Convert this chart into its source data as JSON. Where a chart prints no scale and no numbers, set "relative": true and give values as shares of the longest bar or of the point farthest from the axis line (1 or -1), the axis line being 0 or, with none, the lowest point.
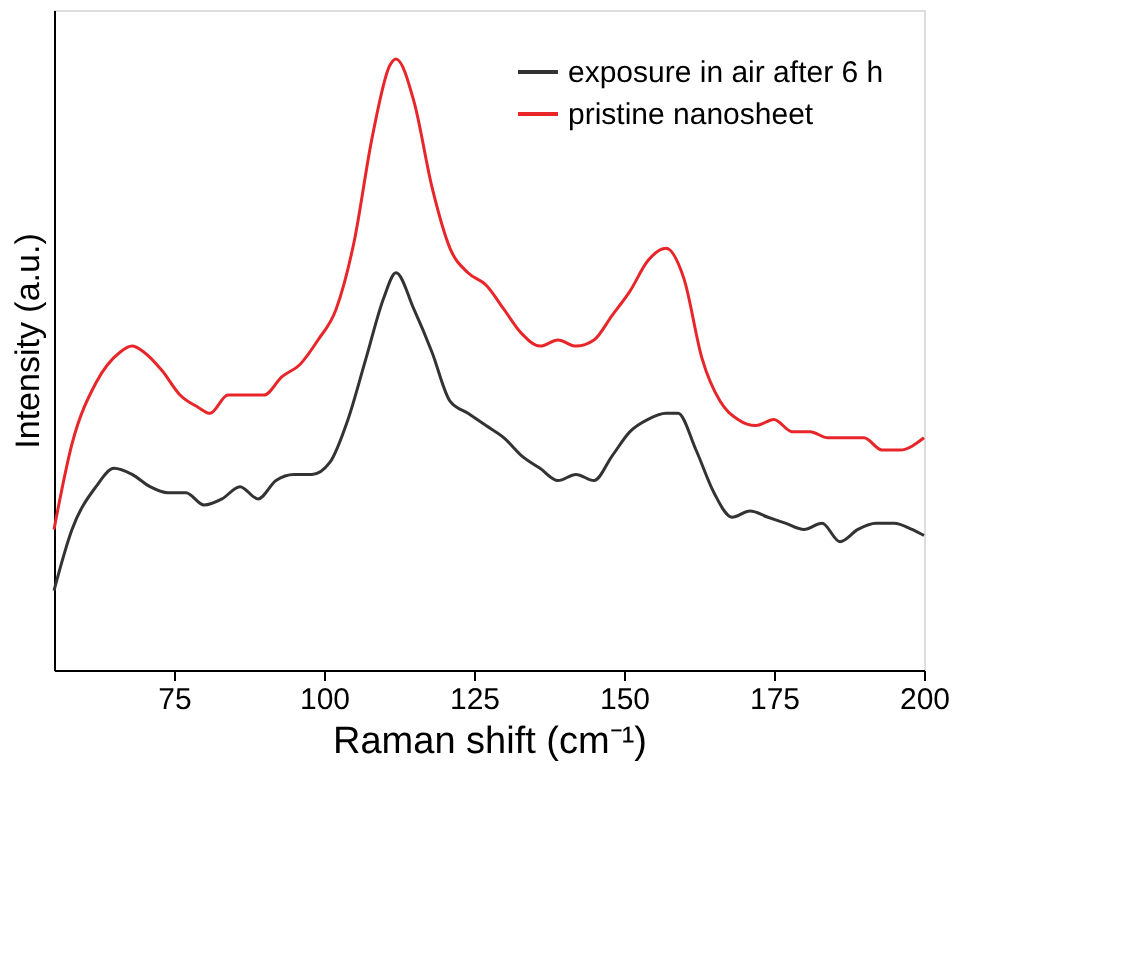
{
  "chart_data": {
    "type": "line",
    "relative": true,
    "xlabel": "Raman shift (cm⁻¹)",
    "ylabel": "Intensity (a.u.)",
    "xlim": [
      55,
      200
    ],
    "xticks": [
      75,
      100,
      125,
      150,
      175,
      200
    ],
    "grid": false,
    "legend": "top right",
    "marker": "none",
    "line_style": "solid",
    "series": [
      {
        "name": "exposure in air after 6 h",
        "color": "#333333",
        "x": [
          55,
          58,
          62,
          65,
          68,
          71,
          74,
          77,
          80,
          83,
          86,
          89,
          92,
          95,
          98,
          101,
          104,
          107,
          110,
          112,
          115,
          118,
          121,
          124,
          127,
          130,
          133,
          136,
          139,
          142,
          145,
          148,
          151,
          154,
          157,
          159,
          162,
          165,
          168,
          171,
          174,
          177,
          180,
          183,
          186,
          189,
          192,
          195,
          198,
          200
        ],
        "values": [
          0.13,
          0.23,
          0.3,
          0.33,
          0.32,
          0.3,
          0.29,
          0.29,
          0.27,
          0.28,
          0.3,
          0.28,
          0.31,
          0.32,
          0.32,
          0.34,
          0.41,
          0.51,
          0.61,
          0.65,
          0.59,
          0.52,
          0.44,
          0.42,
          0.4,
          0.38,
          0.35,
          0.33,
          0.31,
          0.32,
          0.31,
          0.35,
          0.39,
          0.41,
          0.42,
          0.42,
          0.36,
          0.29,
          0.25,
          0.26,
          0.25,
          0.24,
          0.23,
          0.24,
          0.21,
          0.23,
          0.24,
          0.24,
          0.23,
          0.22
        ]
      },
      {
        "name": "pristine nanosheet",
        "color": "#e8262a",
        "x": [
          55,
          58,
          62,
          66,
          68,
          70,
          73,
          76,
          79,
          81,
          84,
          87,
          90,
          93,
          96,
          99,
          102,
          105,
          108,
          111,
          112,
          115,
          118,
          121,
          124,
          127,
          130,
          133,
          136,
          139,
          142,
          145,
          148,
          151,
          154,
          157,
          160,
          163,
          166,
          169,
          172,
          175,
          178,
          181,
          184,
          187,
          190,
          193,
          196,
          200
        ],
        "values": [
          0.23,
          0.37,
          0.47,
          0.52,
          0.53,
          0.52,
          0.49,
          0.45,
          0.43,
          0.42,
          0.45,
          0.45,
          0.45,
          0.48,
          0.5,
          0.54,
          0.59,
          0.7,
          0.87,
          0.99,
          1.0,
          0.93,
          0.79,
          0.69,
          0.65,
          0.63,
          0.59,
          0.55,
          0.53,
          0.54,
          0.53,
          0.54,
          0.58,
          0.62,
          0.67,
          0.69,
          0.64,
          0.51,
          0.44,
          0.41,
          0.4,
          0.41,
          0.39,
          0.39,
          0.38,
          0.38,
          0.38,
          0.36,
          0.36,
          0.38
        ]
      }
    ]
  }
}
